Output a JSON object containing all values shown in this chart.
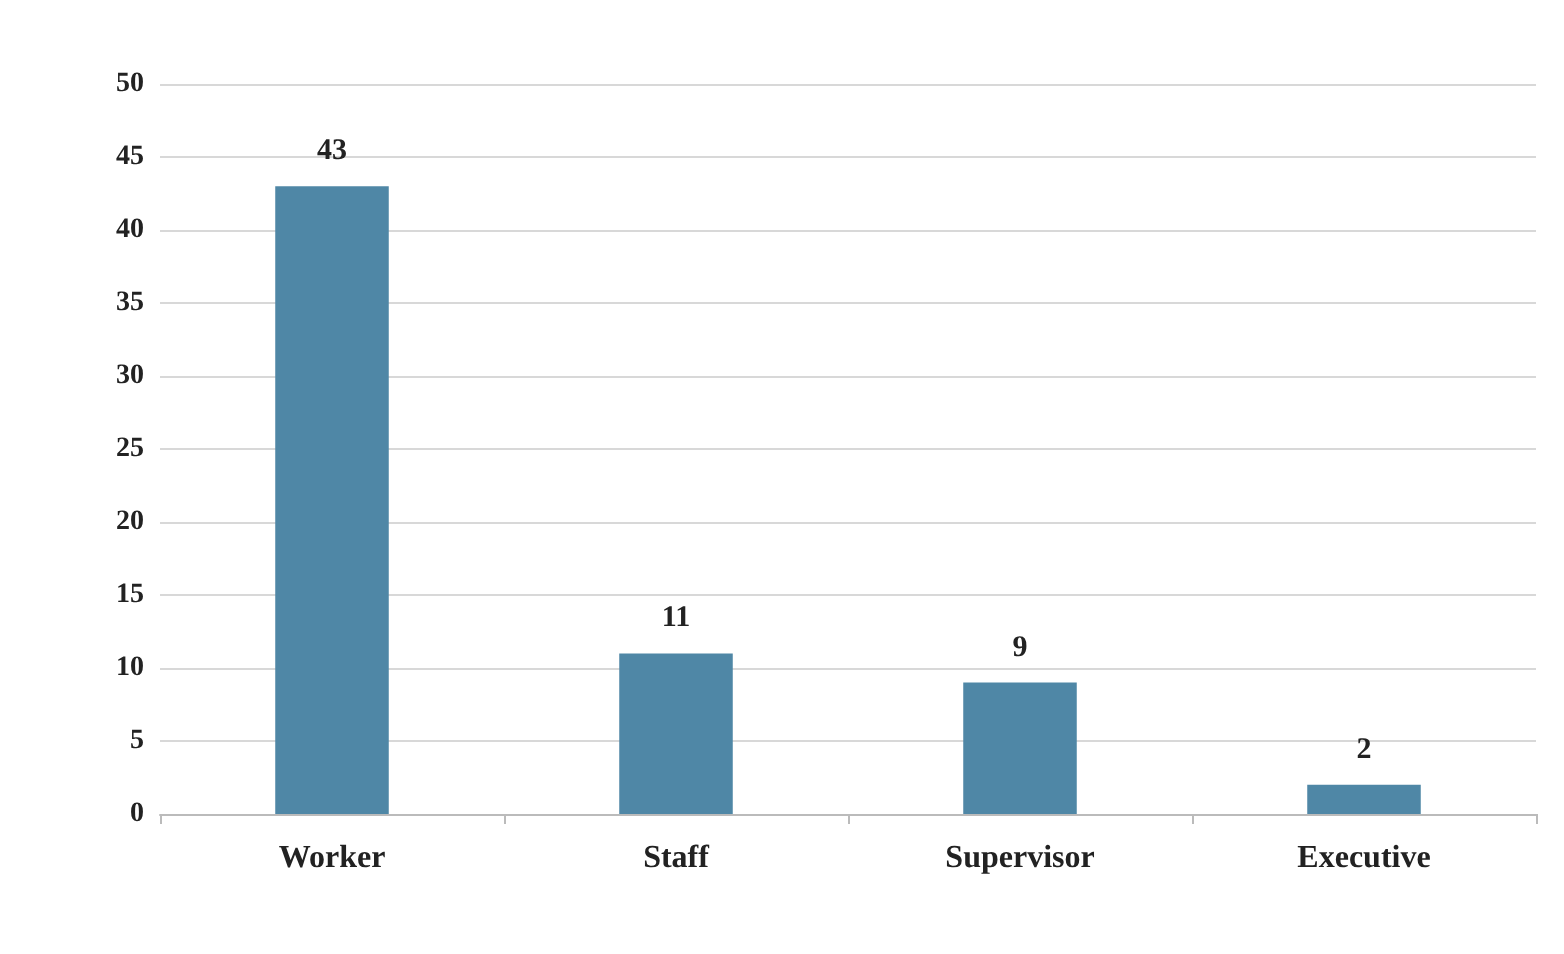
{
  "chart_data": {
    "type": "bar",
    "categories": [
      "Worker",
      "Staff",
      "Supervisor",
      "Executive"
    ],
    "values": [
      43,
      11,
      9,
      2
    ],
    "color": "#4f87a6",
    "ylim": [
      0,
      50
    ],
    "yticks": [
      0,
      5,
      10,
      15,
      20,
      25,
      30,
      35,
      40,
      45,
      50
    ],
    "grid": "y",
    "data_labels": true
  }
}
